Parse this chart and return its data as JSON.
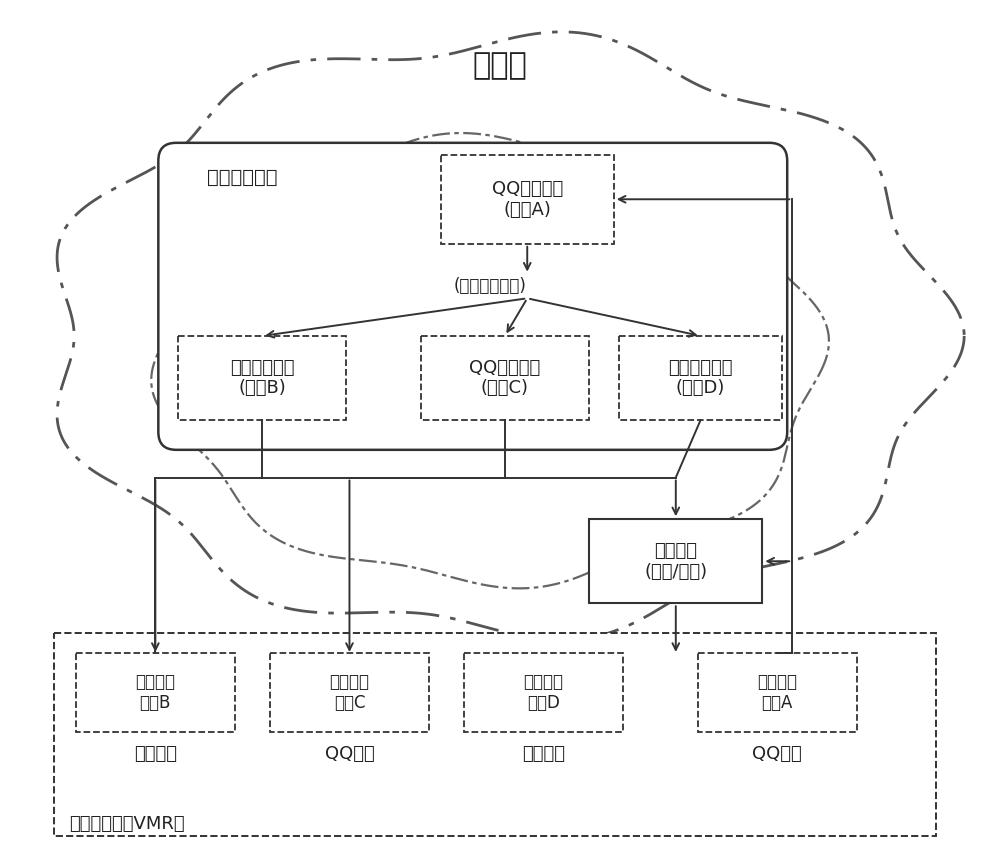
{
  "title": "云平台",
  "background": "#ffffff",
  "virtual_system_label": "虚拟会议系统",
  "call_request_label": "(通讯呼叫请求)",
  "user_a_text": "QQ登陆帐号\n(用户A)",
  "user_b_text": "微信登陆帐号\n(用户B)",
  "user_c_text": "QQ登陆帐号\n(用户C)",
  "user_d_text": "钉钉登陆帐号\n(用户D)",
  "network_text": "通信网络\n(内网/外网)",
  "vmr_label": "虚拟会议室（VMR）",
  "terminal_b_text": "个人用户\n终端B",
  "terminal_c_text": "公司用户\n终端C",
  "terminal_d_text": "个人用户\n终端D",
  "terminal_a_text": "公司用户\n终端A",
  "label_b": "微信界面",
  "label_c": "QQ界面",
  "label_d": "钉钉界面",
  "label_a": "QQ界面",
  "line_color": "#333333",
  "line_lw": 1.4
}
